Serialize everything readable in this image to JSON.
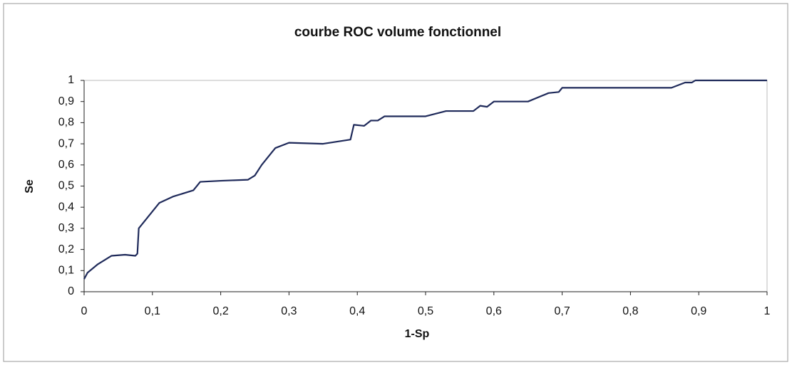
{
  "chart_data": {
    "type": "line",
    "title": "courbe ROC volume fonctionnel",
    "x_label": "1-Sp",
    "y_label": "Se",
    "x": [
      0,
      0.005,
      0.02,
      0.04,
      0.06,
      0.075,
      0.078,
      0.08,
      0.09,
      0.11,
      0.13,
      0.16,
      0.17,
      0.2,
      0.24,
      0.25,
      0.26,
      0.28,
      0.3,
      0.35,
      0.39,
      0.395,
      0.41,
      0.42,
      0.43,
      0.44,
      0.5,
      0.53,
      0.57,
      0.58,
      0.59,
      0.6,
      0.65,
      0.68,
      0.695,
      0.7,
      0.86,
      0.88,
      0.89,
      0.895,
      1
    ],
    "series": [
      {
        "name": "Se",
        "color": "#1f2a5a",
        "values": [
          0.06,
          0.09,
          0.13,
          0.17,
          0.175,
          0.17,
          0.18,
          0.3,
          0.34,
          0.42,
          0.45,
          0.48,
          0.52,
          0.525,
          0.53,
          0.55,
          0.6,
          0.68,
          0.705,
          0.7,
          0.72,
          0.79,
          0.785,
          0.81,
          0.81,
          0.83,
          0.83,
          0.855,
          0.855,
          0.88,
          0.875,
          0.9,
          0.9,
          0.94,
          0.945,
          0.965,
          0.965,
          0.99,
          0.99,
          1,
          1
        ]
      }
    ],
    "xlim": [
      0,
      1
    ],
    "xticks": [
      0,
      {
        "value": 0.1,
        "label": "0,1"
      },
      {
        "value": 0.2,
        "label": "0,2"
      },
      {
        "value": 0.3,
        "label": "0,3"
      },
      {
        "value": 0.4,
        "label": "0,4"
      },
      {
        "value": 0.5,
        "label": "0,5"
      },
      {
        "value": 0.6,
        "label": "0,6"
      },
      {
        "value": 0.7,
        "label": "0,7"
      },
      {
        "value": 0.8,
        "label": "0,8"
      },
      {
        "value": 0.9,
        "label": "0,9"
      },
      1
    ],
    "ylim": [
      0,
      1
    ],
    "yticks": [
      0,
      {
        "value": 0.1,
        "label": "0,1"
      },
      {
        "value": 0.2,
        "label": "0,2"
      },
      {
        "value": 0.3,
        "label": "0,3"
      },
      {
        "value": 0.4,
        "label": "0,4"
      },
      {
        "value": 0.5,
        "label": "0,5"
      },
      {
        "value": 0.6,
        "label": "0,6"
      },
      {
        "value": 0.7,
        "label": "0,7"
      },
      {
        "value": 0.8,
        "label": "0,8"
      },
      {
        "value": 0.9,
        "label": "0,9"
      },
      1
    ],
    "grid": false
  }
}
